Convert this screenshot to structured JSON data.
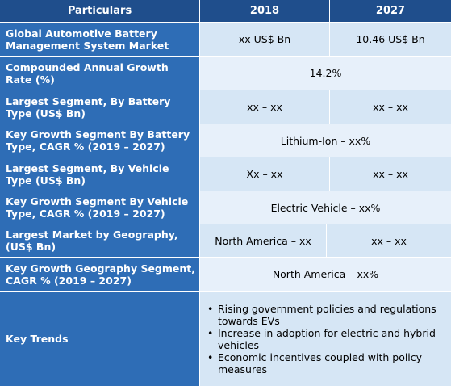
{
  "header": {
    "particulars": "Particulars",
    "year1": "2018",
    "year2": "2027"
  },
  "rows": [
    {
      "label": "Global Automotive Battery Management System Market",
      "v1": "xx US$ Bn",
      "v2": "10.46 US$ Bn"
    },
    {
      "label": "Compounded Annual Growth Rate (%)",
      "v": "14.2%"
    },
    {
      "label": "Largest Segment, By Battery Type (US$ Bn)",
      "v1": "xx – xx",
      "v2": "xx – xx"
    },
    {
      "label": "Key Growth Segment By Battery Type, CAGR % (2019 – 2027)",
      "v": "Lithium-Ion – xx%"
    },
    {
      "label": "Largest Segment, By Vehicle Type (US$ Bn)",
      "v1": "Xx – xx",
      "v2": "xx – xx"
    },
    {
      "label": "Key Growth Segment By Vehicle Type, CAGR % (2019 – 2027)",
      "v": "Electric Vehicle  – xx%"
    },
    {
      "label": "Largest Market by Geography, (US$ Bn)",
      "v1": "North America – xx",
      "v2": "xx – xx"
    },
    {
      "label": "Key Growth Geography Segment, CAGR % (2019 – 2027)",
      "v": "North America – xx%"
    },
    {
      "label": "Key Trends",
      "bullets": [
        "Rising government policies and regulations towards EVs",
        "Increase in adoption for electric and hybrid vehicles",
        "Economic incentives coupled with policy measures"
      ]
    }
  ],
  "colors": {
    "header_bg": "#1f4e8c",
    "label_bg": "#2e6db6",
    "value_bg_a": "#d6e6f5",
    "value_bg_b": "#e7f0fa"
  }
}
